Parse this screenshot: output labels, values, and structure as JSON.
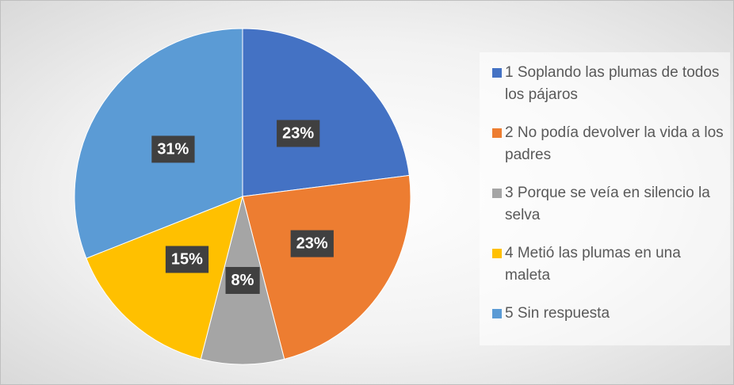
{
  "chart_data": {
    "type": "pie",
    "categories": [
      "1 Soplando las plumas de todos los pájaros",
      "2 No podía devolver la vida a los padres",
      "3 Porque se veía en silencio la selva",
      "4 Metió las plumas en una maleta",
      "5 Sin respuesta"
    ],
    "values": [
      23,
      23,
      8,
      15,
      31
    ],
    "value_labels": [
      "23%",
      "23%",
      "8%",
      "15%",
      "31%"
    ],
    "colors": [
      "#4472c4",
      "#ed7d31",
      "#a5a5a5",
      "#ffc000",
      "#5b9bd5"
    ],
    "legend": "right"
  }
}
